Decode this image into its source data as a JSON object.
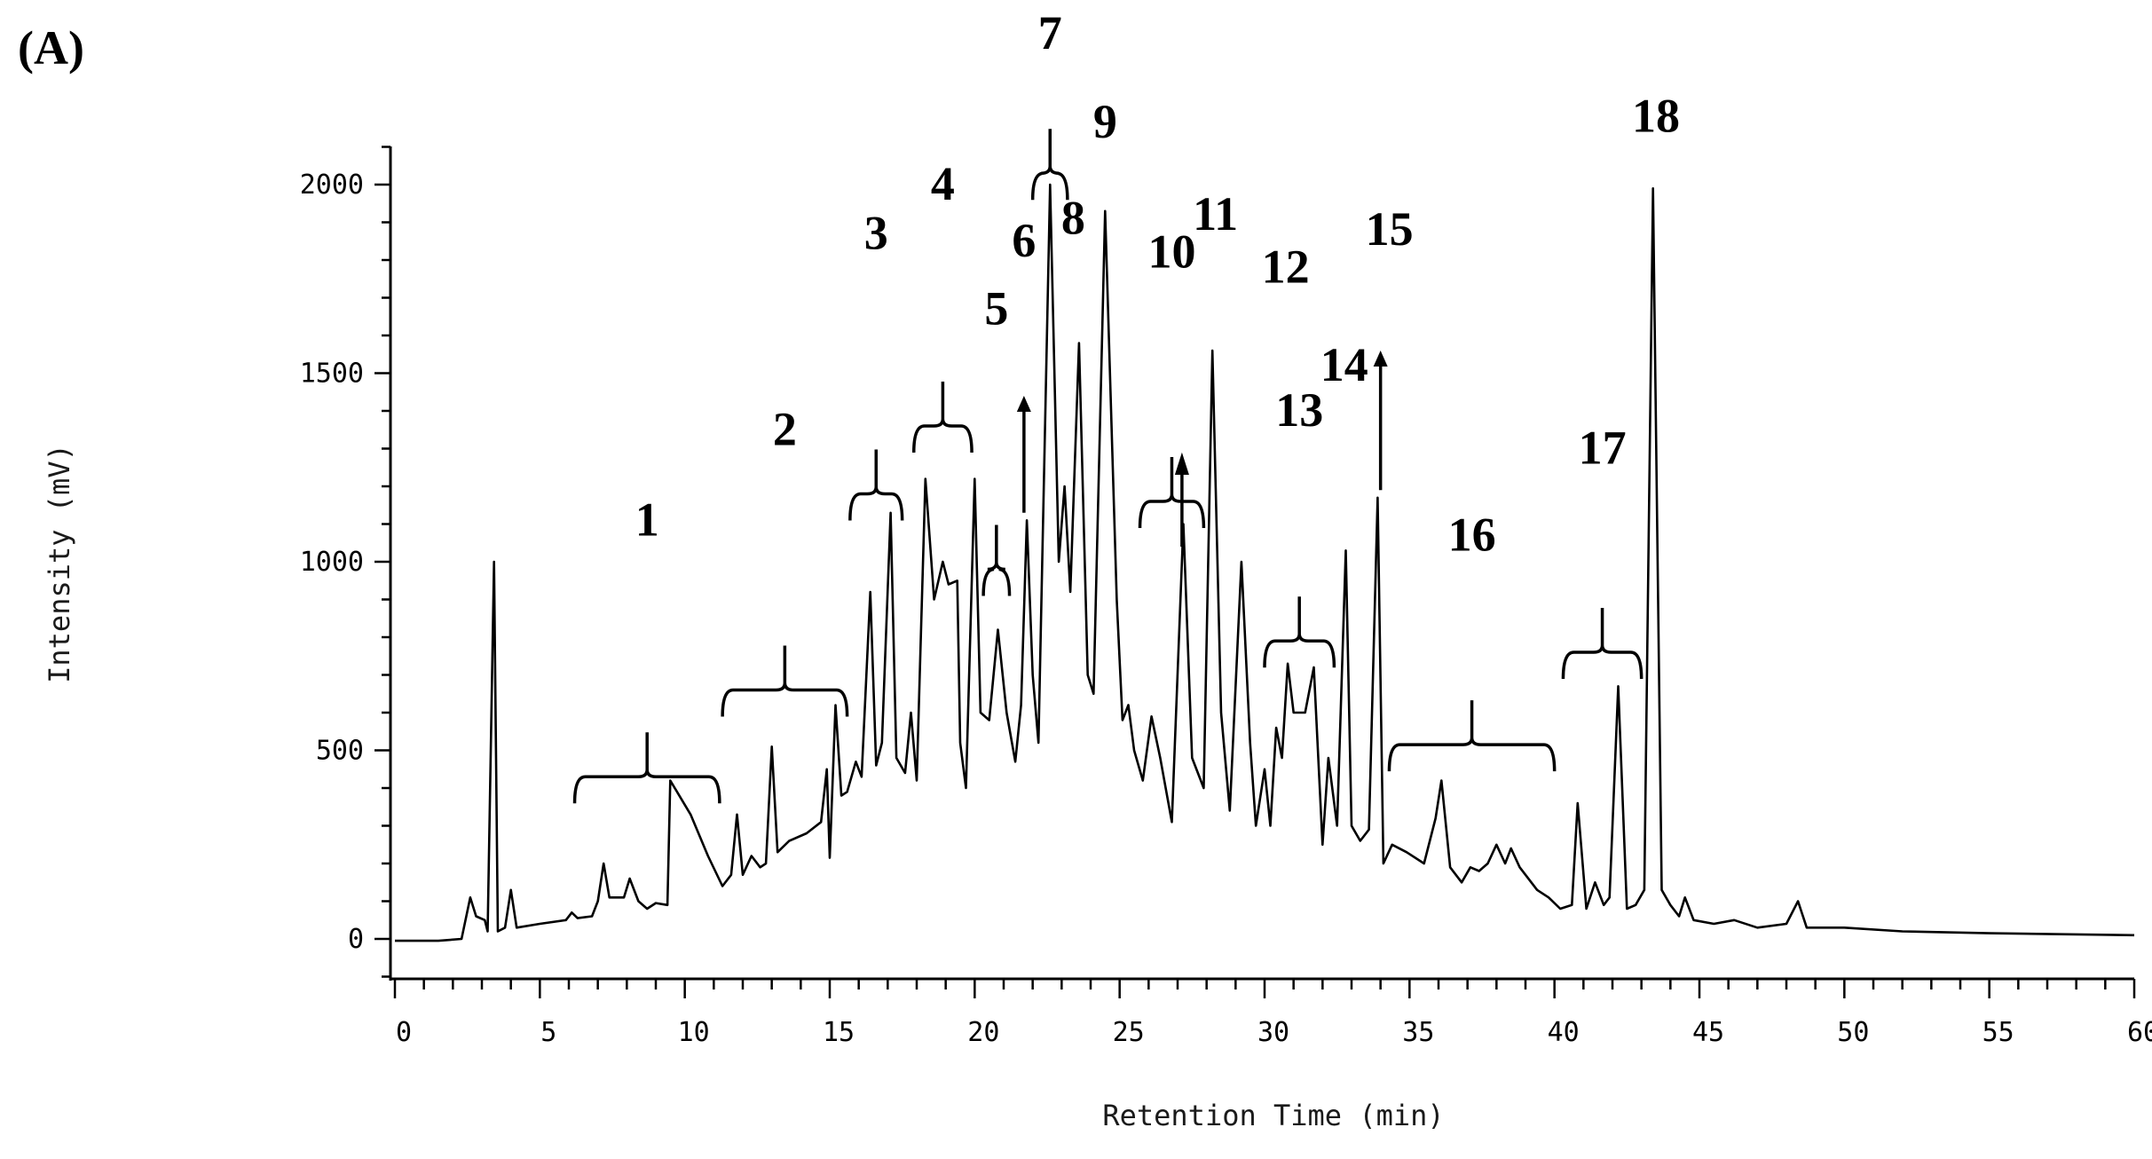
{
  "panel_label": "(A)",
  "chart_data": {
    "type": "line",
    "title": "",
    "xlabel": "Retention Time (min)",
    "ylabel": "Intensity (mV)",
    "xlim": [
      0,
      60
    ],
    "ylim": [
      -100,
      2100
    ],
    "x_ticks": [
      0,
      5,
      10,
      15,
      20,
      25,
      30,
      35,
      40,
      45,
      50,
      55,
      60
    ],
    "y_ticks": [
      0,
      500,
      1000,
      1500,
      2000
    ],
    "grid": false,
    "series": [
      {
        "points": [
          [
            0,
            -5
          ],
          [
            1.5,
            -5
          ],
          [
            2.3,
            0
          ],
          [
            2.6,
            110
          ],
          [
            2.8,
            60
          ],
          [
            3.1,
            50
          ],
          [
            3.2,
            20
          ],
          [
            3.42,
            1000
          ],
          [
            3.55,
            20
          ],
          [
            3.8,
            30
          ],
          [
            4.0,
            130
          ],
          [
            4.2,
            30
          ],
          [
            5.0,
            40
          ],
          [
            5.9,
            50
          ],
          [
            6.1,
            70
          ],
          [
            6.3,
            55
          ],
          [
            6.8,
            60
          ],
          [
            7.0,
            100
          ],
          [
            7.2,
            200
          ],
          [
            7.4,
            110
          ],
          [
            7.9,
            110
          ],
          [
            8.1,
            160
          ],
          [
            8.4,
            100
          ],
          [
            8.7,
            80
          ],
          [
            9.0,
            95
          ],
          [
            9.4,
            90
          ],
          [
            9.5,
            420
          ],
          [
            10.2,
            330
          ],
          [
            10.8,
            220
          ],
          [
            11.3,
            140
          ],
          [
            11.6,
            170
          ],
          [
            11.8,
            330
          ],
          [
            12.0,
            170
          ],
          [
            12.3,
            220
          ],
          [
            12.6,
            190
          ],
          [
            12.8,
            200
          ],
          [
            13.0,
            510
          ],
          [
            13.2,
            230
          ],
          [
            13.6,
            260
          ],
          [
            14.2,
            280
          ],
          [
            14.7,
            310
          ],
          [
            14.9,
            450
          ],
          [
            15.0,
            215
          ],
          [
            15.2,
            620
          ],
          [
            15.4,
            380
          ],
          [
            15.6,
            390
          ],
          [
            15.9,
            470
          ],
          [
            16.1,
            430
          ],
          [
            16.4,
            920
          ],
          [
            16.6,
            460
          ],
          [
            16.8,
            520
          ],
          [
            17.1,
            1130
          ],
          [
            17.3,
            480
          ],
          [
            17.6,
            440
          ],
          [
            17.8,
            600
          ],
          [
            18.0,
            420
          ],
          [
            18.3,
            1220
          ],
          [
            18.6,
            900
          ],
          [
            18.9,
            1000
          ],
          [
            19.1,
            940
          ],
          [
            19.4,
            950
          ],
          [
            19.5,
            520
          ],
          [
            19.7,
            400
          ],
          [
            20.0,
            1220
          ],
          [
            20.2,
            600
          ],
          [
            20.5,
            580
          ],
          [
            20.8,
            820
          ],
          [
            21.1,
            600
          ],
          [
            21.4,
            470
          ],
          [
            21.6,
            620
          ],
          [
            21.8,
            1110
          ],
          [
            22.0,
            700
          ],
          [
            22.2,
            520
          ],
          [
            22.6,
            2000
          ],
          [
            22.9,
            1000
          ],
          [
            23.1,
            1200
          ],
          [
            23.3,
            920
          ],
          [
            23.6,
            1580
          ],
          [
            23.9,
            700
          ],
          [
            24.1,
            650
          ],
          [
            24.5,
            1930
          ],
          [
            24.9,
            900
          ],
          [
            25.1,
            580
          ],
          [
            25.3,
            620
          ],
          [
            25.5,
            500
          ],
          [
            25.8,
            420
          ],
          [
            26.1,
            590
          ],
          [
            26.4,
            480
          ],
          [
            26.8,
            310
          ],
          [
            27.2,
            1100
          ],
          [
            27.5,
            480
          ],
          [
            27.9,
            400
          ],
          [
            28.2,
            1560
          ],
          [
            28.5,
            600
          ],
          [
            28.8,
            340
          ],
          [
            29.2,
            1000
          ],
          [
            29.5,
            520
          ],
          [
            29.7,
            300
          ],
          [
            30.0,
            450
          ],
          [
            30.2,
            300
          ],
          [
            30.4,
            560
          ],
          [
            30.6,
            480
          ],
          [
            30.8,
            730
          ],
          [
            31.0,
            600
          ],
          [
            31.4,
            600
          ],
          [
            31.7,
            720
          ],
          [
            32.0,
            250
          ],
          [
            32.2,
            480
          ],
          [
            32.5,
            300
          ],
          [
            32.8,
            1030
          ],
          [
            33.0,
            300
          ],
          [
            33.3,
            260
          ],
          [
            33.6,
            290
          ],
          [
            33.9,
            1170
          ],
          [
            34.1,
            200
          ],
          [
            34.4,
            250
          ],
          [
            34.9,
            230
          ],
          [
            35.5,
            200
          ],
          [
            35.9,
            320
          ],
          [
            36.1,
            420
          ],
          [
            36.4,
            190
          ],
          [
            36.8,
            150
          ],
          [
            37.1,
            190
          ],
          [
            37.4,
            180
          ],
          [
            37.7,
            200
          ],
          [
            38.0,
            250
          ],
          [
            38.3,
            200
          ],
          [
            38.5,
            240
          ],
          [
            38.8,
            190
          ],
          [
            39.4,
            130
          ],
          [
            39.8,
            110
          ],
          [
            40.2,
            80
          ],
          [
            40.6,
            90
          ],
          [
            40.8,
            360
          ],
          [
            41.1,
            80
          ],
          [
            41.4,
            150
          ],
          [
            41.7,
            90
          ],
          [
            41.9,
            110
          ],
          [
            42.2,
            670
          ],
          [
            42.5,
            80
          ],
          [
            42.8,
            90
          ],
          [
            43.1,
            130
          ],
          [
            43.4,
            1990
          ],
          [
            43.7,
            130
          ],
          [
            44.0,
            90
          ],
          [
            44.3,
            60
          ],
          [
            44.5,
            110
          ],
          [
            44.8,
            50
          ],
          [
            45.5,
            40
          ],
          [
            46.2,
            50
          ],
          [
            47.0,
            30
          ],
          [
            48.0,
            40
          ],
          [
            48.4,
            100
          ],
          [
            48.7,
            30
          ],
          [
            50.0,
            30
          ],
          [
            52.0,
            20
          ],
          [
            55.0,
            15
          ],
          [
            60.0,
            10
          ]
        ]
      }
    ],
    "annotations": [
      {
        "label": "1",
        "kind": "bracket",
        "x_start": 6.2,
        "x_end": 11.2
      },
      {
        "label": "2",
        "kind": "bracket",
        "x_start": 11.3,
        "x_end": 15.6
      },
      {
        "label": "3",
        "kind": "bracket",
        "x_start": 15.7,
        "x_end": 17.5
      },
      {
        "label": "4",
        "kind": "bracket",
        "x_start": 17.9,
        "x_end": 19.9
      },
      {
        "label": "5",
        "kind": "bracket",
        "x_start": 20.3,
        "x_end": 21.2
      },
      {
        "label": "6",
        "kind": "arrow",
        "x": 21.7
      },
      {
        "label": "7",
        "kind": "bracket",
        "x_start": 22.0,
        "x_end": 23.2
      },
      {
        "label": "8",
        "kind": "text",
        "x": 23.4
      },
      {
        "label": "9",
        "kind": "text",
        "x": 24.5
      },
      {
        "label": "10",
        "kind": "bracket",
        "x_start": 25.7,
        "x_end": 27.9
      },
      {
        "label": "11",
        "kind": "text",
        "x": 28.0
      },
      {
        "label": "12",
        "kind": "text",
        "x": 29.5
      },
      {
        "label": "13",
        "kind": "bracket",
        "x_start": 30.0,
        "x_end": 32.4
      },
      {
        "label": "14",
        "kind": "text",
        "x": 32.9
      },
      {
        "label": "15",
        "kind": "arrow",
        "x": 34.0
      },
      {
        "label": "16",
        "kind": "bracket",
        "x_start": 34.3,
        "x_end": 40.0
      },
      {
        "label": "17",
        "kind": "bracket",
        "x_start": 40.3,
        "x_end": 43.0
      },
      {
        "label": "18",
        "kind": "text",
        "x": 43.5
      }
    ]
  }
}
